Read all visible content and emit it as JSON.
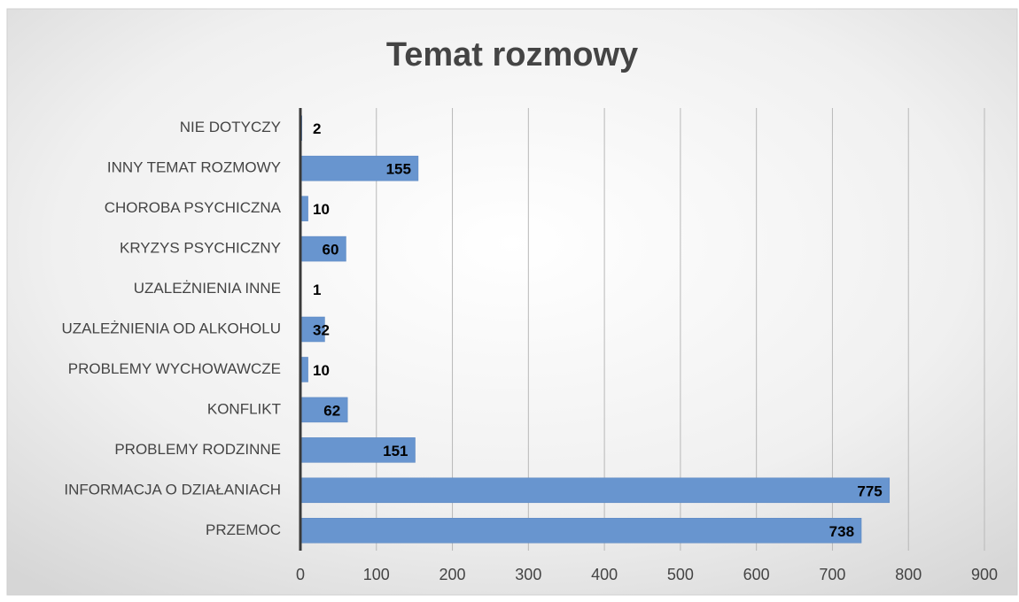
{
  "chart_data": {
    "type": "barh",
    "title": "Temat rozmowy",
    "categories": [
      "NIE DOTYCZY",
      "INNY TEMAT ROZMOWY",
      "CHOROBA PSYCHICZNA",
      "KRYZYS PSYCHICZNY",
      "UZALEŻNIENIA INNE",
      "UZALEŻNIENIA OD ALKOHOLU",
      "PROBLEMY WYCHOWAWCZE",
      "KONFLIKT",
      "PROBLEMY RODZINNE",
      "INFORMACJA O DZIAŁANIACH",
      "PRZEMOC"
    ],
    "values": [
      2,
      155,
      10,
      60,
      1,
      32,
      10,
      62,
      151,
      775,
      738
    ],
    "color": "#6895cf",
    "xlim": [
      0,
      900
    ],
    "xticks": [
      0,
      100,
      200,
      300,
      400,
      500,
      600,
      700,
      800,
      900
    ],
    "grid": true
  }
}
